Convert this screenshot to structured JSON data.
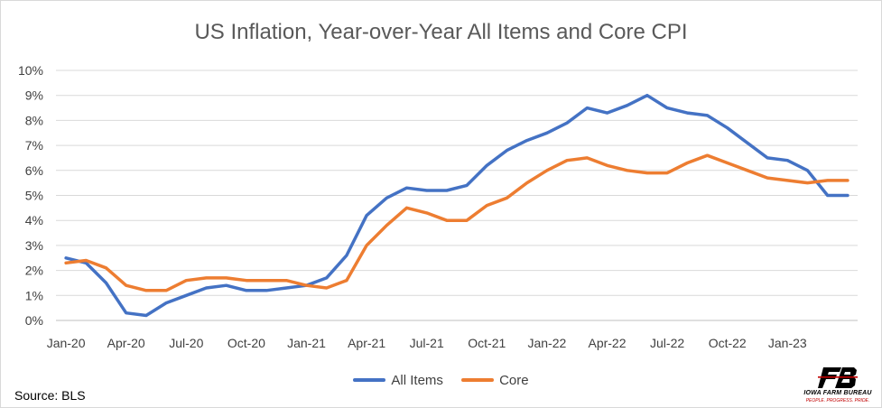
{
  "chart_data": {
    "type": "line",
    "title": "US Inflation, Year-over-Year All Items and Core CPI",
    "xlabel": "",
    "ylabel": "",
    "ylim": [
      0,
      10
    ],
    "yticks": [
      "0%",
      "1%",
      "2%",
      "3%",
      "4%",
      "5%",
      "6%",
      "7%",
      "8%",
      "9%",
      "10%"
    ],
    "grid": true,
    "legend": "bottom",
    "x": [
      "2020-01",
      "2020-02",
      "2020-03",
      "2020-04",
      "2020-05",
      "2020-06",
      "2020-07",
      "2020-08",
      "2020-09",
      "2020-10",
      "2020-11",
      "2020-12",
      "2021-01",
      "2021-02",
      "2021-03",
      "2021-04",
      "2021-05",
      "2021-06",
      "2021-07",
      "2021-08",
      "2021-09",
      "2021-10",
      "2021-11",
      "2021-12",
      "2022-01",
      "2022-02",
      "2022-03",
      "2022-04",
      "2022-05",
      "2022-06",
      "2022-07",
      "2022-08",
      "2022-09",
      "2022-10",
      "2022-11",
      "2022-12",
      "2023-01",
      "2023-02",
      "2023-03",
      "2023-04"
    ],
    "xtick_labels": [
      "Jan-20",
      "Apr-20",
      "Jul-20",
      "Oct-20",
      "Jan-21",
      "Apr-21",
      "Jul-21",
      "Oct-21",
      "Jan-22",
      "Apr-22",
      "Jul-22",
      "Oct-22",
      "Jan-23"
    ],
    "series": [
      {
        "name": "All Items",
        "color": "#4472c4",
        "values": [
          2.5,
          2.3,
          1.5,
          0.3,
          0.2,
          0.7,
          1.0,
          1.3,
          1.4,
          1.2,
          1.2,
          1.3,
          1.4,
          1.7,
          2.6,
          4.2,
          4.9,
          5.3,
          5.2,
          5.2,
          5.4,
          6.2,
          6.8,
          7.2,
          7.5,
          7.9,
          8.5,
          8.3,
          8.6,
          9.0,
          8.5,
          8.3,
          8.2,
          7.7,
          7.1,
          6.5,
          6.4,
          6.0,
          5.0,
          5.0
        ]
      },
      {
        "name": "Core",
        "color": "#ed7d31",
        "values": [
          2.3,
          2.4,
          2.1,
          1.4,
          1.2,
          1.2,
          1.6,
          1.7,
          1.7,
          1.6,
          1.6,
          1.6,
          1.4,
          1.3,
          1.6,
          3.0,
          3.8,
          4.5,
          4.3,
          4.0,
          4.0,
          4.6,
          4.9,
          5.5,
          6.0,
          6.4,
          6.5,
          6.2,
          6.0,
          5.9,
          5.9,
          6.3,
          6.6,
          6.3,
          6.0,
          5.7,
          5.6,
          5.5,
          5.6,
          5.6
        ]
      }
    ]
  },
  "source": "Source: BLS",
  "logo": {
    "name": "IOWA FARM BUREAU",
    "tagline": "PEOPLE. PROGRESS. PRIDE.",
    "colors": {
      "mark": "#000000",
      "accent": "#c00000"
    }
  }
}
